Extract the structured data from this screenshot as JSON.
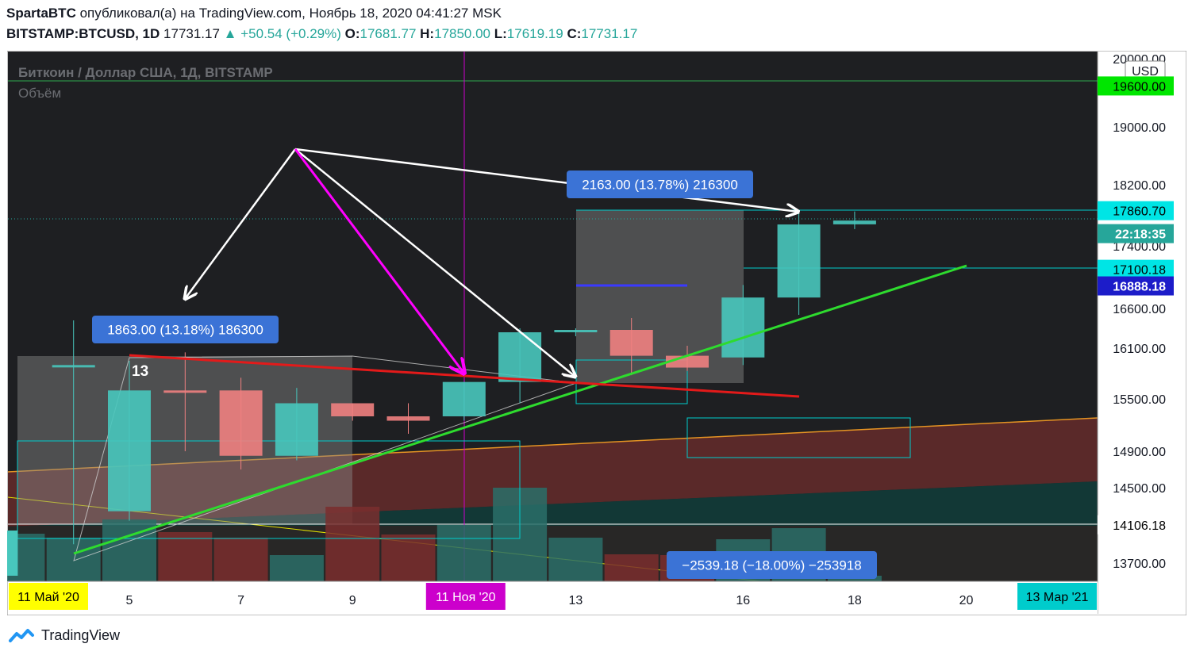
{
  "header": {
    "author": "SpartaBTC",
    "published_text": "опубликовал(а) на TradingView.com, Ноябрь 18, 2020 04:41:27 MSK",
    "symbol": "BITSTAMP:BTCUSD, 1D",
    "last": "17731.17",
    "change": "+50.54 (+0.29%)",
    "o_label": "O:",
    "o": "17681.77",
    "h_label": "H:",
    "h": "17850.00",
    "l_label": "L:",
    "l": "17619.19",
    "c_label": "C:",
    "c": "17731.17"
  },
  "chart_title": "Биткоин / Доллар США, 1Д, BITSTAMP",
  "volume_label": "Объём",
  "currency": "USD",
  "colors": {
    "bg": "#1e1f22",
    "up": "#48c7bd",
    "down": "#f08080",
    "green_line": "#2edb2e",
    "red_line": "#e31a1a",
    "magenta": "#ff00ff",
    "label_blue": "#3b73d6",
    "orange": "#e59423"
  },
  "price_axis": {
    "ticks": [
      "20000.00",
      "19000.00",
      "18200.00",
      "17400.00",
      "16600.00",
      "16100.00",
      "15500.00",
      "14900.00",
      "14500.00",
      "13700.00"
    ],
    "markers": [
      {
        "text": "19600.00",
        "price": 19600,
        "bg": "#00e600",
        "fg": "#000000"
      },
      {
        "text": "17860.70",
        "price": 17860.7,
        "bg": "#00e5e5",
        "fg": "#000000"
      },
      {
        "text": "22:18:35",
        "price": 17560,
        "bg": "#26a69a",
        "fg": "#ffffff"
      },
      {
        "text": "17100.18",
        "price": 17100.18,
        "bg": "#00e5e5",
        "fg": "#000000"
      },
      {
        "text": "16888.18",
        "price": 16888.18,
        "bg": "#1c1cc9",
        "fg": "#ffffff"
      },
      {
        "text": "14106.18",
        "price": 14106.18,
        "bg": "#ffffff",
        "fg": "#000000"
      }
    ]
  },
  "time_axis": {
    "ticks": [
      {
        "text": "5",
        "day": 5
      },
      {
        "text": "7",
        "day": 7
      },
      {
        "text": "9",
        "day": 9
      },
      {
        "text": "13",
        "day": 13
      },
      {
        "text": "16",
        "day": 16
      },
      {
        "text": "18",
        "day": 18
      },
      {
        "text": "20",
        "day": 20
      }
    ],
    "markers": [
      {
        "text": "11 Май '20",
        "pos": "left",
        "bg": "#ffff00",
        "fg": "#000000"
      },
      {
        "text": "11 Ноя '20",
        "day": 11,
        "bg": "#cc00cc",
        "fg": "#ffffff"
      },
      {
        "text": "13 Мар '21",
        "pos": "right",
        "bg": "#00cccc",
        "fg": "#000000"
      }
    ]
  },
  "chart_data": {
    "type": "candlestick",
    "title": "Биткоин / Доллар США, 1Д, BITSTAMP",
    "ylabel": "USD",
    "ylim": [
      13600,
      20050
    ],
    "candles": [
      {
        "day": 4,
        "o": 15900,
        "h": 16450,
        "l": 13900,
        "c": 15900,
        "v": 0.55
      },
      {
        "day": 5,
        "o": 14250,
        "h": 15950,
        "l": 14150,
        "c": 15600,
        "v": 0.78
      },
      {
        "day": 6,
        "o": 15600,
        "h": 16050,
        "l": 14900,
        "c": 15580,
        "v": 0.62
      },
      {
        "day": 7,
        "o": 15600,
        "h": 15750,
        "l": 14700,
        "c": 14850,
        "v": 0.55
      },
      {
        "day": 8,
        "o": 14850,
        "h": 15630,
        "l": 14800,
        "c": 15450,
        "v": 0.33
      },
      {
        "day": 9,
        "o": 15450,
        "h": 15450,
        "l": 15250,
        "c": 15300,
        "v": 0.94
      },
      {
        "day": 10,
        "o": 15300,
        "h": 15450,
        "l": 15100,
        "c": 15250,
        "v": 0.59
      },
      {
        "day": 11,
        "o": 15300,
        "h": 15700,
        "l": 15250,
        "c": 15700,
        "v": 0.71
      },
      {
        "day": 12,
        "o": 15700,
        "h": 16350,
        "l": 15450,
        "c": 16300,
        "v": 1.18
      },
      {
        "day": 13,
        "o": 16300,
        "h": 16350,
        "l": 16250,
        "c": 16330,
        "v": 0.55
      },
      {
        "day": 14,
        "o": 16330,
        "h": 16480,
        "l": 15780,
        "c": 16010,
        "v": 0.34
      },
      {
        "day": 15,
        "o": 16010,
        "h": 16130,
        "l": 15830,
        "c": 15870,
        "v": 0.33
      },
      {
        "day": 16,
        "o": 15990,
        "h": 16900,
        "l": 15900,
        "c": 16740,
        "v": 0.53
      },
      {
        "day": 17,
        "o": 16740,
        "h": 17860.7,
        "l": 16520,
        "c": 17680,
        "v": 0.67
      },
      {
        "day": 18,
        "o": 17681.77,
        "h": 17850,
        "l": 17619.19,
        "c": 17731.17,
        "v": 0.07
      }
    ],
    "annotations": [
      {
        "text": "1863.00 (13.18%) 186300"
      },
      {
        "text": "2163.00 (13.78%) 216300"
      },
      {
        "text": "−2539.18 (−18.00%) −253918"
      },
      {
        "text": "13"
      }
    ]
  }
}
